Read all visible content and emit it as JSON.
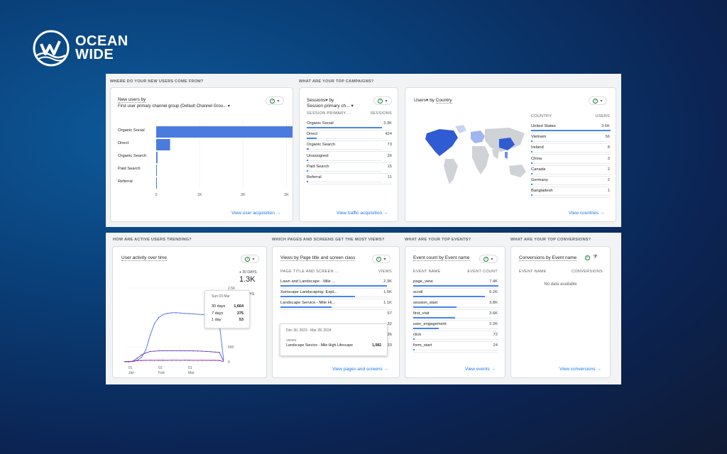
{
  "brand": {
    "line1": "OCEAN",
    "line2": "WIDE"
  },
  "top": {
    "acq_section": "WHERE DO YOUR NEW USERS COME FROM?",
    "camp_section": "WHAT ARE YOUR TOP CAMPAIGNS?",
    "acq": {
      "title": "New users by",
      "subtitle": "First user primary channel group (Default Channel Grou... ▾",
      "categories": [
        "Organic Social",
        "Direct",
        "Organic Search",
        "Paid Search",
        "Referral"
      ],
      "values": [
        3300,
        320,
        30,
        15,
        10
      ],
      "ticks": [
        "0",
        "1K",
        "2K",
        "3K"
      ],
      "link": "View user acquisition"
    },
    "campaigns": {
      "title_a": "Sessions▾ by",
      "title_b": "Session primary ch... ▾",
      "col1": "SESSION PRIMARY ...",
      "col2": "SESSIONS",
      "rows": [
        {
          "label": "Organic Social",
          "value": "3.3K",
          "pct": 1.0
        },
        {
          "label": "Direct",
          "value": "424",
          "pct": 0.13
        },
        {
          "label": "Organic Search",
          "value": "73",
          "pct": 0.03
        },
        {
          "label": "Unassigned",
          "value": "26",
          "pct": 0.01
        },
        {
          "label": "Paid Search",
          "value": "15",
          "pct": 0.01
        },
        {
          "label": "Referral",
          "value": "11",
          "pct": 0.01
        }
      ],
      "link": "View traffic acquisition"
    },
    "countries": {
      "title_a": "Users▾",
      "title_b": "by",
      "title_c": "Country",
      "col1": "COUNTRY",
      "col2": "USERS",
      "rows": [
        {
          "label": "United States",
          "value": "3.6K",
          "pct": 1.0
        },
        {
          "label": "Vietnam",
          "value": "56",
          "pct": 0.02
        },
        {
          "label": "Ireland",
          "value": "8",
          "pct": 0.01
        },
        {
          "label": "China",
          "value": "3",
          "pct": 0.01
        },
        {
          "label": "Canada",
          "value": "2",
          "pct": 0.01
        },
        {
          "label": "Germany",
          "value": "2",
          "pct": 0.01
        },
        {
          "label": "Bangladesh",
          "value": "1",
          "pct": 0.01
        }
      ],
      "link": "View countries"
    }
  },
  "bottom": {
    "active_section": "HOW ARE ACTIVE USERS TRENDING?",
    "pages_section": "WHICH PAGES AND SCREENS GET THE MOST VIEWS?",
    "events_section": "WHAT ARE YOUR TOP EVENTS?",
    "conv_section": "WHAT ARE YOUR TOP CONVERSIONS?",
    "active": {
      "title": "User activity over time",
      "legend_label": "30 DAYS",
      "legend_value": "1.3K",
      "legend_label2": "DAYS",
      "legend_value2": "0",
      "yticks": [
        "2.5K",
        "500",
        "0"
      ],
      "xticks": [
        {
          "d": "01",
          "m": "Jan"
        },
        {
          "d": "01",
          "m": "Feb"
        },
        {
          "d": "01",
          "m": "Mar"
        }
      ],
      "tooltip": {
        "date": "Sun 03 Mar",
        "rows": [
          {
            "label": "30 days",
            "value": "1,664"
          },
          {
            "label": "7 days",
            "value": "375"
          },
          {
            "label": "1 day",
            "value": "53"
          }
        ]
      },
      "chart_data": {
        "type": "line",
        "series": [
          {
            "name": "30 DAYS",
            "values": [
              10,
              10,
              20,
              50,
              150,
              400,
              900,
              1300,
              1500,
              1600,
              1640,
              1660,
              1664,
              1650,
              1640,
              1630,
              1620,
              1610,
              1600,
              1590,
              1400,
              1300,
              1300,
              60
            ]
          },
          {
            "name": "7 DAYS",
            "values": [
              5,
              5,
              20,
              120,
              230,
              300,
              350,
              360,
              370,
              375,
              375,
              374,
              375,
              372,
              370,
              370,
              368,
              365,
              360,
              350,
              340,
              330,
              320,
              20
            ]
          },
          {
            "name": "1 DAY",
            "values": [
              2,
              3,
              10,
              40,
              45,
              50,
              52,
              50,
              53,
              51,
              50,
              52,
              53,
              50,
              52,
              51,
              50,
              50,
              52,
              50,
              48,
              50,
              45,
              5
            ]
          }
        ],
        "ylim": [
          0,
          2500
        ]
      }
    },
    "pages": {
      "title": "Views by Page title and screen class",
      "col1": "PAGE TITLE AND SCREEN ...",
      "col2": "VIEWS",
      "rows": [
        {
          "label": "Lawn and Landscape - Mile ...",
          "value": "2.3K",
          "pct": 1.0
        },
        {
          "label": "Xeriscape Landscaping: Expl...",
          "value": "1.6K",
          "pct": 0.7
        },
        {
          "label": "Landscape Service - Mile Hi...",
          "value": "1.1K",
          "pct": 0.48
        },
        {
          "label": "",
          "value": "57",
          "pct": 0.03
        },
        {
          "label": "",
          "value": "32",
          "pct": 0.02
        },
        {
          "label": "",
          "value": "26",
          "pct": 0.01
        },
        {
          "label": "Landscaping - Mile High Life...",
          "value": "133",
          "pct": 0.05
        }
      ],
      "tooltip": {
        "date": "Dec 30, 2023 - Mar 28, 2024",
        "label": "VIEWS",
        "name": "Landscape Service - Mile High Lifescape",
        "value": "1,082"
      },
      "link": "View pages and screens"
    },
    "events": {
      "title": "Event count by Event name",
      "col1": "EVENT NAME",
      "col2": "EVENT COUNT",
      "rows": [
        {
          "label": "page_view",
          "value": "7.4K",
          "pct": 1.0
        },
        {
          "label": "scroll",
          "value": "6.2K",
          "pct": 0.84
        },
        {
          "label": "session_start",
          "value": "3.8K",
          "pct": 0.51
        },
        {
          "label": "first_visit",
          "value": "3.6K",
          "pct": 0.49
        },
        {
          "label": "user_engagement",
          "value": "2.2K",
          "pct": 0.3
        },
        {
          "label": "click",
          "value": "72",
          "pct": 0.01
        },
        {
          "label": "form_start",
          "value": "24",
          "pct": 0.01
        }
      ],
      "link": "View events"
    },
    "conversions": {
      "title": "Conversions by Event name",
      "col1": "EVENT NAME",
      "col2": "CONVERSIONS",
      "empty": "No data available",
      "link": "View conversions"
    }
  },
  "colors": {
    "accent": "#1a73e8",
    "bar": "#4285f4",
    "line1": "#4c6fd8",
    "line2": "#6a3ab8",
    "line3": "#8e2a9e"
  }
}
